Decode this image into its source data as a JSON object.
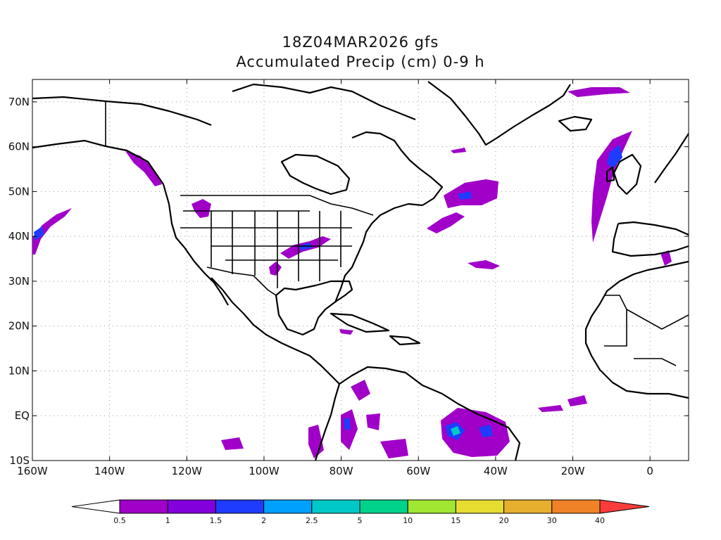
{
  "title": {
    "line1": "18Z04MAR2026 gfs",
    "line2": "Accumulated Precip (cm) 0-9 h"
  },
  "map": {
    "lon_range": [
      -160,
      10
    ],
    "lat_range": [
      -10,
      75
    ],
    "lon_ticks": [
      "160W",
      "140W",
      "120W",
      "100W",
      "80W",
      "60W",
      "40W",
      "20W",
      "0"
    ],
    "lat_ticks": [
      "10S",
      "EQ",
      "10N",
      "20N",
      "30N",
      "40N",
      "50N",
      "60N",
      "70N"
    ],
    "grid": true,
    "coastline_color": "#000000"
  },
  "colorbar": {
    "labels": [
      "0.5",
      "1",
      "1.5",
      "2",
      "2.5",
      "5",
      "10",
      "15",
      "20",
      "30",
      "40"
    ],
    "colors": [
      "#ffffff",
      "#a000c8",
      "#8200dc",
      "#1e3cff",
      "#00a0ff",
      "#00c8c8",
      "#00d28c",
      "#a0e632",
      "#e6dc32",
      "#e6af2d",
      "#f08228",
      "#fa3c3c"
    ]
  }
}
